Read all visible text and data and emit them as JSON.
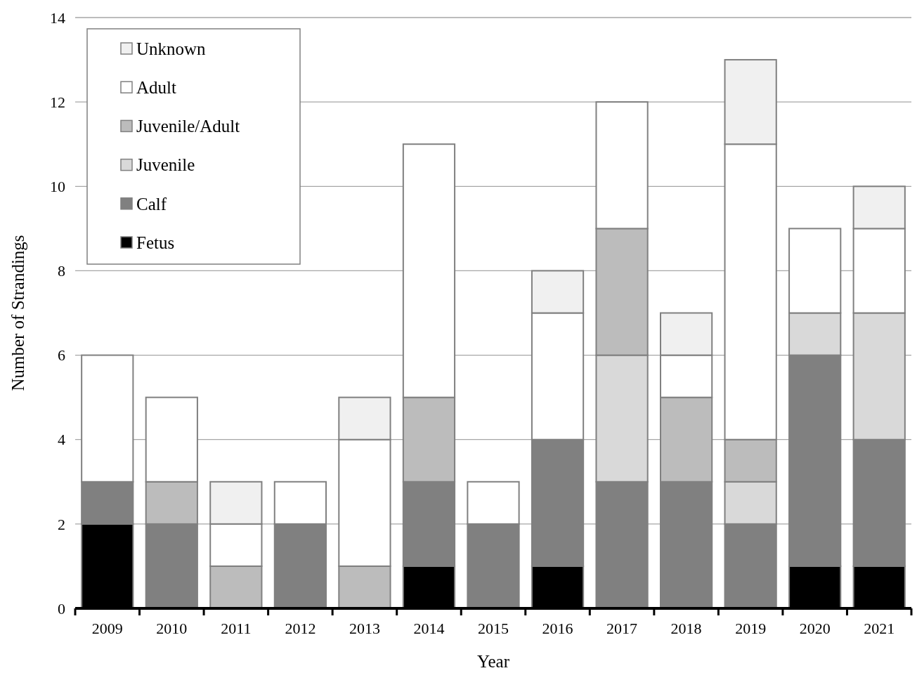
{
  "chart_data": {
    "type": "bar",
    "stacked": true,
    "xlabel": "Year",
    "ylabel": "Number of Strandings",
    "categories": [
      "2009",
      "2010",
      "2011",
      "2012",
      "2013",
      "2014",
      "2015",
      "2016",
      "2017",
      "2018",
      "2019",
      "2020",
      "2021"
    ],
    "series": [
      {
        "name": "Fetus",
        "color": "#000000",
        "values": [
          2,
          0,
          0,
          0,
          0,
          1,
          0,
          1,
          0,
          0,
          0,
          1,
          1
        ]
      },
      {
        "name": "Calf",
        "color": "#808080",
        "values": [
          1,
          2,
          0,
          2,
          0,
          2,
          2,
          3,
          3,
          3,
          2,
          5,
          3
        ]
      },
      {
        "name": "Juvenile",
        "color": "#d9d9d9",
        "values": [
          0,
          0,
          0,
          0,
          0,
          0,
          0,
          0,
          3,
          0,
          1,
          1,
          3
        ]
      },
      {
        "name": "Juvenile/Adult",
        "color": "#bcbcbc",
        "values": [
          0,
          1,
          1,
          0,
          1,
          2,
          0,
          0,
          3,
          2,
          1,
          0,
          0
        ]
      },
      {
        "name": "Adult",
        "color": "#ffffff",
        "values": [
          3,
          2,
          1,
          1,
          3,
          6,
          1,
          3,
          3,
          1,
          7,
          2,
          2
        ]
      },
      {
        "name": "Unknown",
        "color": "#f0f0f0",
        "values": [
          0,
          0,
          1,
          0,
          1,
          0,
          0,
          1,
          0,
          1,
          2,
          0,
          1
        ]
      }
    ],
    "ylim": [
      0,
      14
    ],
    "yticks": [
      0,
      2,
      4,
      6,
      8,
      10,
      12,
      14
    ],
    "grid": "y",
    "legend": "top left"
  }
}
